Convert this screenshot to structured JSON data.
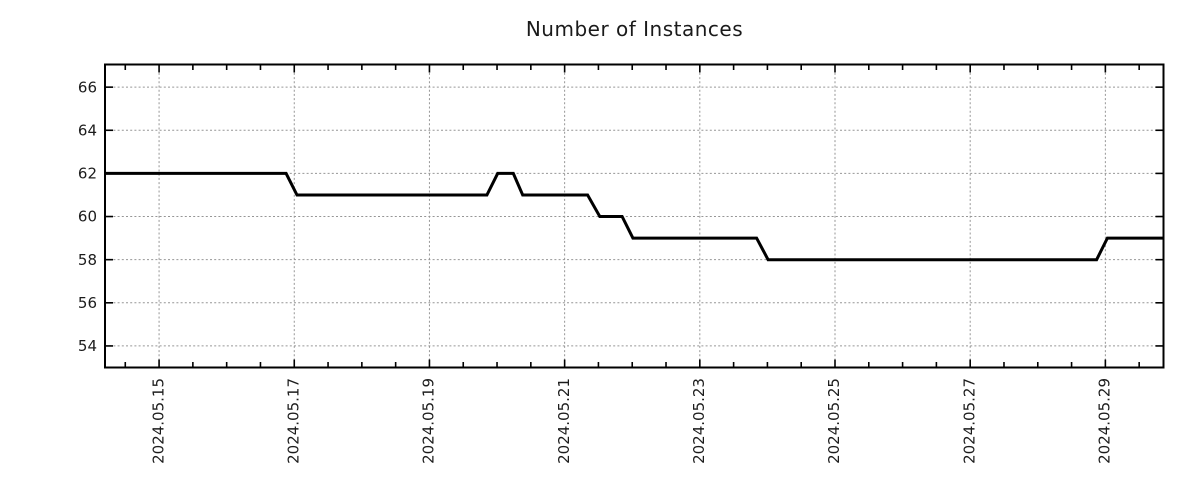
{
  "title": "Number of Instances",
  "chart_data": {
    "type": "line",
    "subtype": "step",
    "title": "Number of Instances",
    "xlabel": "",
    "ylabel": "",
    "legend": false,
    "grid": "dashed-major-both-axes",
    "tick_style": "inward-all-four-borders",
    "line_color": "#000000",
    "line_width": 3,
    "grid_color": "#969696",
    "axis_color": "#000000",
    "text_color": "#1c1c1c",
    "background": "#ffffff",
    "x_axis": {
      "tick_labels": [
        "2024.05.15",
        "2024.05.17",
        "2024.05.19",
        "2024.05.21",
        "2024.05.23",
        "2024.05.25",
        "2024.05.27",
        "2024.05.29"
      ],
      "tick_days": [
        15,
        17,
        19,
        21,
        23,
        25,
        27,
        29
      ],
      "minor_tick_step_days": 0.5,
      "range_days": [
        14.2,
        29.86
      ],
      "label_rotation_deg": -90
    },
    "y_axis": {
      "ticks": [
        54,
        56,
        58,
        60,
        62,
        64,
        66
      ],
      "range": [
        53.0,
        67.05
      ],
      "minor_ticks": false
    },
    "series": [
      {
        "name": "instances",
        "points": [
          [
            14.2,
            62
          ],
          [
            16.88,
            62
          ],
          [
            17.04,
            61
          ],
          [
            19.85,
            61
          ],
          [
            20.01,
            62
          ],
          [
            20.24,
            62
          ],
          [
            20.38,
            61
          ],
          [
            21.34,
            61
          ],
          [
            21.52,
            60
          ],
          [
            21.85,
            60
          ],
          [
            22.01,
            59
          ],
          [
            23.84,
            59
          ],
          [
            24.01,
            58
          ],
          [
            28.87,
            58
          ],
          [
            29.03,
            59
          ],
          [
            29.86,
            59
          ]
        ]
      }
    ]
  }
}
